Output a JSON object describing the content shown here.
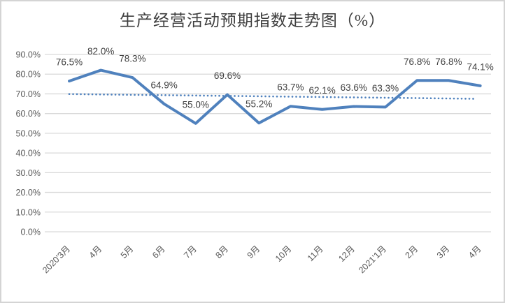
{
  "chart_data": {
    "type": "line",
    "title": "生产经营活动预期指数走势图（%）",
    "categories": [
      "2020'3月",
      "4月",
      "5月",
      "6月",
      "7月",
      "8月",
      "9月",
      "10月",
      "11月",
      "12月",
      "2021'1月",
      "2月",
      "3月",
      "4月"
    ],
    "values": [
      76.5,
      82.0,
      78.3,
      64.9,
      55.0,
      69.6,
      55.2,
      63.7,
      62.1,
      63.6,
      63.3,
      76.8,
      76.8,
      74.1
    ],
    "data_labels": [
      "76.5%",
      "82.0%",
      "78.3%",
      "64.9%",
      "55.0%",
      "69.6%",
      "55.2%",
      "63.7%",
      "62.1%",
      "63.6%",
      "63.3%",
      "76.8%",
      "76.8%",
      "74.1%"
    ],
    "xlabel": "",
    "ylabel": "",
    "ylim": [
      0,
      90
    ],
    "y_tick_step": 10,
    "y_tick_labels": [
      "0.0%",
      "10.0%",
      "20.0%",
      "30.0%",
      "40.0%",
      "50.0%",
      "60.0%",
      "70.0%",
      "80.0%",
      "90.0%"
    ],
    "grid": true,
    "legend_position": "none",
    "trendline": {
      "style": "dotted",
      "start_value": 69.9,
      "end_value": 67.5
    },
    "colors": {
      "series_line": "#4f81bd",
      "trendline": "#4f81bd",
      "gridline": "#d9d9d9",
      "axis_text": "#595959",
      "data_label_text": "#404040",
      "title_text": "#3f3f3f",
      "background": "#ffffff",
      "frame_border": "#d4d4d4"
    }
  }
}
